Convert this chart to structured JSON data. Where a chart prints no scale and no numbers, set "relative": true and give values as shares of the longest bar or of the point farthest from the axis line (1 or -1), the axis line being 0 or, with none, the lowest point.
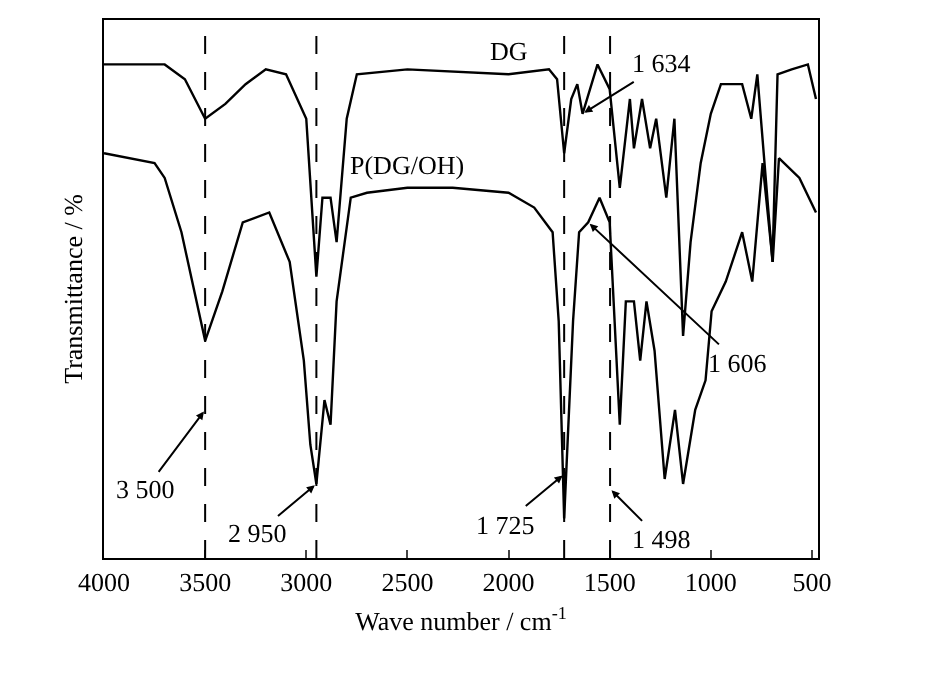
{
  "chart_data": {
    "type": "line",
    "relative": true,
    "xlabel": "Wave number / cm$^{-1}$",
    "ylabel": "Transmittance / %",
    "xlim": [
      4000,
      470
    ],
    "xticks": [
      4000,
      3500,
      3000,
      2500,
      2000,
      1500,
      1000,
      500
    ],
    "grid": false,
    "legend": false,
    "marker": "none",
    "line_style": "solid",
    "x": [
      4000,
      3700,
      3600,
      3500,
      3400,
      3300,
      3200,
      3100,
      3000,
      2950,
      2920,
      2880,
      2850,
      2800,
      2750,
      2500,
      2000,
      1800,
      1760,
      1725,
      1690,
      1660,
      1634,
      1560,
      1500,
      1450,
      1400,
      1380,
      1340,
      1300,
      1270,
      1220,
      1180,
      1137,
      1100,
      1050,
      1000,
      950,
      845,
      800,
      770,
      695,
      670,
      600,
      520,
      480
    ],
    "series": [
      {
        "name": "DG",
        "color": "#000000",
        "values": [
          1.0,
          1.0,
          0.97,
          0.89,
          0.92,
          0.96,
          0.99,
          0.98,
          0.89,
          0.57,
          0.73,
          0.73,
          0.64,
          0.89,
          0.98,
          0.99,
          0.98,
          0.99,
          0.97,
          0.82,
          0.93,
          0.96,
          0.9,
          1.0,
          0.95,
          0.75,
          0.93,
          0.83,
          0.93,
          0.83,
          0.89,
          0.73,
          0.89,
          0.45,
          0.64,
          0.8,
          0.9,
          0.96,
          0.96,
          0.89,
          0.98,
          0.6,
          0.98,
          0.99,
          1.0,
          0.93
        ]
      },
      {
        "name": "P(DG/OH)",
        "color": "#000000",
        "x": [
          4000,
          3750,
          3700,
          3617,
          3500,
          3415,
          3314,
          3183,
          3082,
          3012,
          2980,
          2950,
          2910,
          2880,
          2850,
          2780,
          2700,
          2500,
          2276,
          2000,
          1873,
          1782,
          1752,
          1725,
          1681,
          1651,
          1606,
          1550,
          1500,
          1450,
          1420,
          1380,
          1349,
          1318,
          1278,
          1228,
          1177,
          1137,
          1077,
          1026,
          996,
          926,
          845,
          795,
          744,
          694,
          663,
          562,
          480
        ],
        "values": [
          0.82,
          0.8,
          0.77,
          0.66,
          0.44,
          0.54,
          0.68,
          0.7,
          0.6,
          0.4,
          0.23,
          0.15,
          0.32,
          0.27,
          0.52,
          0.73,
          0.74,
          0.75,
          0.75,
          0.74,
          0.71,
          0.66,
          0.48,
          0.08,
          0.48,
          0.66,
          0.68,
          0.73,
          0.68,
          0.27,
          0.52,
          0.52,
          0.4,
          0.52,
          0.42,
          0.16,
          0.3,
          0.15,
          0.3,
          0.36,
          0.5,
          0.56,
          0.66,
          0.56,
          0.8,
          0.6,
          0.81,
          0.77,
          0.7
        ]
      }
    ],
    "ref_lines": [
      {
        "axis": "x",
        "value": 3500,
        "line_style": "dashed",
        "color": "#000000"
      },
      {
        "axis": "x",
        "value": 2950,
        "line_style": "dashed",
        "color": "#000000"
      },
      {
        "axis": "x",
        "value": 1725,
        "line_style": "dashed",
        "color": "#000000"
      },
      {
        "axis": "x",
        "value": 1498,
        "line_style": "dashed",
        "color": "#000000"
      }
    ],
    "annotations": [
      {
        "text": "3 500",
        "x": 3500,
        "y": 0.3
      },
      {
        "text": "2 950",
        "x": 2950,
        "y": 0.15
      },
      {
        "text": "1 725",
        "x": 1725,
        "y": 0.17
      },
      {
        "text": "1 498",
        "x": 1498,
        "y": 0.14
      },
      {
        "text": "1 634",
        "x": 1634,
        "y": 0.9
      },
      {
        "text": "1 606",
        "x": 1606,
        "y": 0.68
      }
    ]
  }
}
